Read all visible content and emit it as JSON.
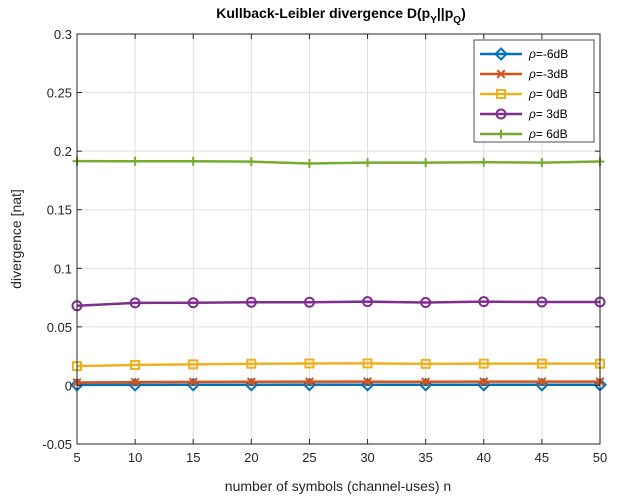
{
  "chart_data": {
    "type": "line",
    "title": "Kullback-Leibler divergence D(p_Y||p_Q)",
    "title_parts": {
      "main": "Kullback-Leibler divergence D(p",
      "sub1": "Y",
      "mid": "||p",
      "sub2": "Q",
      "end": ")"
    },
    "xlabel": "number of symbols (channel-uses) n",
    "ylabel": "divergence [nat]",
    "xlim": [
      5,
      50
    ],
    "ylim": [
      -0.05,
      0.3
    ],
    "x_ticks": [
      "5",
      "10",
      "15",
      "20",
      "25",
      "30",
      "35",
      "40",
      "45",
      "50"
    ],
    "y_ticks": [
      "-0.05",
      "0",
      "0.05",
      "0.1",
      "0.15",
      "0.2",
      "0.25",
      "0.3"
    ],
    "grid": true,
    "legend_position": "top-right",
    "x": [
      5,
      10,
      15,
      20,
      25,
      30,
      35,
      40,
      45,
      50
    ],
    "series": [
      {
        "name": "ρ=-6dB",
        "label_sym": "ρ",
        "label_rest": "=-6dB",
        "color": "#0072BD",
        "marker": "diamond",
        "values": [
          0.0005,
          0.0005,
          0.0006,
          0.0006,
          0.0007,
          0.0006,
          0.0006,
          0.0006,
          0.0006,
          0.0006
        ]
      },
      {
        "name": "ρ=-3dB",
        "label_sym": "ρ",
        "label_rest": "=-3dB",
        "color": "#D95319",
        "marker": "x",
        "values": [
          0.0025,
          0.0028,
          0.003,
          0.0031,
          0.0032,
          0.0032,
          0.0031,
          0.0032,
          0.0032,
          0.0032
        ]
      },
      {
        "name": "ρ= 0dB",
        "label_sym": "ρ",
        "label_rest": "= 0dB",
        "color": "#EDB120",
        "marker": "square",
        "values": [
          0.0165,
          0.0175,
          0.018,
          0.0185,
          0.0187,
          0.0188,
          0.0184,
          0.0186,
          0.0186,
          0.0186
        ]
      },
      {
        "name": "ρ= 3dB",
        "label_sym": "ρ",
        "label_rest": "= 3dB",
        "color": "#7E2F8E",
        "marker": "circle",
        "values": [
          0.068,
          0.0705,
          0.0706,
          0.071,
          0.071,
          0.0715,
          0.0708,
          0.0715,
          0.0712,
          0.0712
        ]
      },
      {
        "name": "ρ= 6dB",
        "label_sym": "ρ",
        "label_rest": "= 6dB",
        "color": "#77AC30",
        "marker": "plus",
        "values": [
          0.1915,
          0.1914,
          0.1914,
          0.191,
          0.1895,
          0.1902,
          0.1902,
          0.1905,
          0.1902,
          0.1912
        ]
      }
    ]
  }
}
